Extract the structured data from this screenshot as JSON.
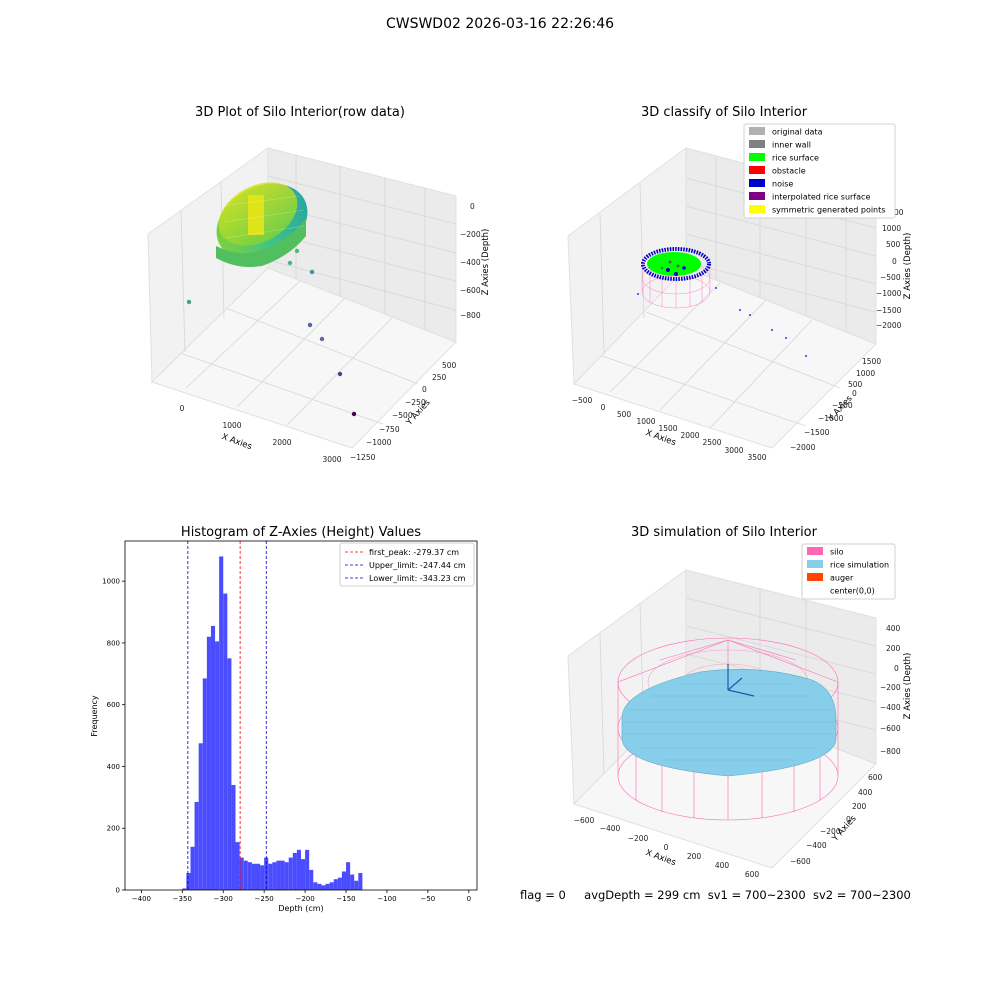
{
  "figure": {
    "suptitle": "CWSWD02 2026-03-16 22:26:46",
    "status": {
      "flag": "flag = 0",
      "avg_depth": "avgDepth = 299 cm",
      "sv1": "sv1 = 700~2300",
      "sv2": "sv2 = 700~2300"
    }
  },
  "colors": {
    "hist_bar": "#4c4cff",
    "peak_line": "#ff0000",
    "limit_line": "#0000cc",
    "silo": "#ff69b4",
    "rice_simulation": "#87ceeb",
    "auger": "#ff4500",
    "original_data": "#b0b0b0",
    "inner_wall": "#808080",
    "rice_surface": "#00ff00",
    "obstacle": "#ff0000",
    "noise": "#0000cd",
    "interpolated_rice_surface": "#800080",
    "symmetric_generated_points": "#ffff00"
  },
  "chart_data": [
    {
      "type": "scatter",
      "subtype": "3d",
      "title": "3D Plot of Silo Interior(row data)",
      "xlabel": "X Axies",
      "ylabel": "Y Axies",
      "zlabel": "Z Axies (Depth)",
      "x_ticks": [
        "0",
        "1000",
        "2000",
        "3000"
      ],
      "y_ticks": [
        "−1250",
        "−1000",
        "−750",
        "−500",
        "−250",
        "0",
        "250",
        "500"
      ],
      "z_ticks": [
        "0",
        "−200",
        "−400",
        "−600",
        "−800"
      ],
      "scattered_points": [
        {
          "x": 150,
          "y": 350,
          "z": -600
        },
        {
          "x": 1100,
          "y": 380,
          "z": -430
        },
        {
          "x": 1300,
          "y": 280,
          "z": -470
        },
        {
          "x": 1450,
          "y": 120,
          "z": -550
        },
        {
          "x": 2050,
          "y": -380,
          "z": -700
        },
        {
          "x": 2400,
          "y": -550,
          "z": -760
        },
        {
          "x": 2900,
          "y": -900,
          "z": -800
        },
        {
          "x": 3300,
          "y": -1150,
          "z": -850
        }
      ]
    },
    {
      "type": "scatter",
      "subtype": "3d",
      "title": "3D classify of Silo Interior",
      "xlabel": "X Axies",
      "ylabel": "Y Axies",
      "zlabel": "Z Axies (Depth)",
      "x_ticks": [
        "−500",
        "0",
        "500",
        "1000",
        "1500",
        "2000",
        "2500",
        "3000",
        "3500"
      ],
      "y_ticks": [
        "−2000",
        "−1500",
        "−1000",
        "−500",
        "0",
        "500",
        "1000",
        "1500"
      ],
      "z_ticks": [
        "1000",
        "500",
        "0",
        "−500",
        "−1000",
        "−1500",
        "−2000"
      ],
      "z_top_tick_partial": "00",
      "legend": [
        {
          "label": "original data",
          "color": "#b0b0b0"
        },
        {
          "label": "inner wall",
          "color": "#808080"
        },
        {
          "label": "rice surface",
          "color": "#00ff00"
        },
        {
          "label": "obstacle",
          "color": "#ff0000"
        },
        {
          "label": "noise",
          "color": "#0000cd"
        },
        {
          "label": "interpolated rice surface",
          "color": "#800080"
        },
        {
          "label": "symmetric generated points",
          "color": "#ffff00"
        }
      ]
    },
    {
      "type": "bar",
      "subtype": "histogram",
      "title": "Histogram of Z-Axies (Height) Values",
      "xlabel": "Depth (cm)",
      "ylabel": "Frequency",
      "xlim": [
        -420,
        10
      ],
      "ylim": [
        0,
        1130
      ],
      "x_ticks": [
        -400,
        -350,
        -300,
        -250,
        -200,
        -150,
        -100,
        -50,
        0
      ],
      "y_ticks": [
        0,
        200,
        400,
        600,
        800,
        1000
      ],
      "bin_start": -350,
      "bin_width": 5,
      "values": [
        5,
        55,
        140,
        285,
        475,
        685,
        820,
        855,
        805,
        1080,
        960,
        750,
        340,
        155,
        105,
        95,
        90,
        85,
        85,
        80,
        105,
        85,
        90,
        95,
        95,
        90,
        105,
        120,
        130,
        100,
        130,
        65,
        25,
        20,
        15,
        20,
        25,
        35,
        40,
        60,
        90,
        50,
        30,
        55
      ],
      "lines": [
        {
          "label": "first_peak: -279.37 cm",
          "x": -279.37,
          "color": "#ff0000"
        },
        {
          "label": "Upper_limit: -247.44 cm",
          "x": -247.44,
          "color": "#0000cc"
        },
        {
          "label": "Lower_limit: -343.23 cm",
          "x": -343.23,
          "color": "#0000cc"
        }
      ]
    },
    {
      "type": "scatter",
      "subtype": "3d",
      "title": "3D simulation of Silo Interior",
      "xlabel": "X Axies",
      "ylabel": "Y Axies",
      "zlabel": "Z Axies (Depth)",
      "x_ticks": [
        "−600",
        "−400",
        "−200",
        "0",
        "200",
        "400",
        "600"
      ],
      "y_ticks": [
        "−600",
        "−400",
        "−200",
        "0",
        "200",
        "400",
        "600"
      ],
      "z_ticks": [
        "400",
        "200",
        "0",
        "−200",
        "−400",
        "−600",
        "−800"
      ],
      "legend": [
        {
          "label": "silo",
          "color": "#ff69b4"
        },
        {
          "label": "rice simulation",
          "color": "#87ceeb"
        },
        {
          "label": "auger",
          "color": "#ff4500"
        },
        {
          "label": "center(0,0)",
          "color": ""
        }
      ]
    }
  ]
}
